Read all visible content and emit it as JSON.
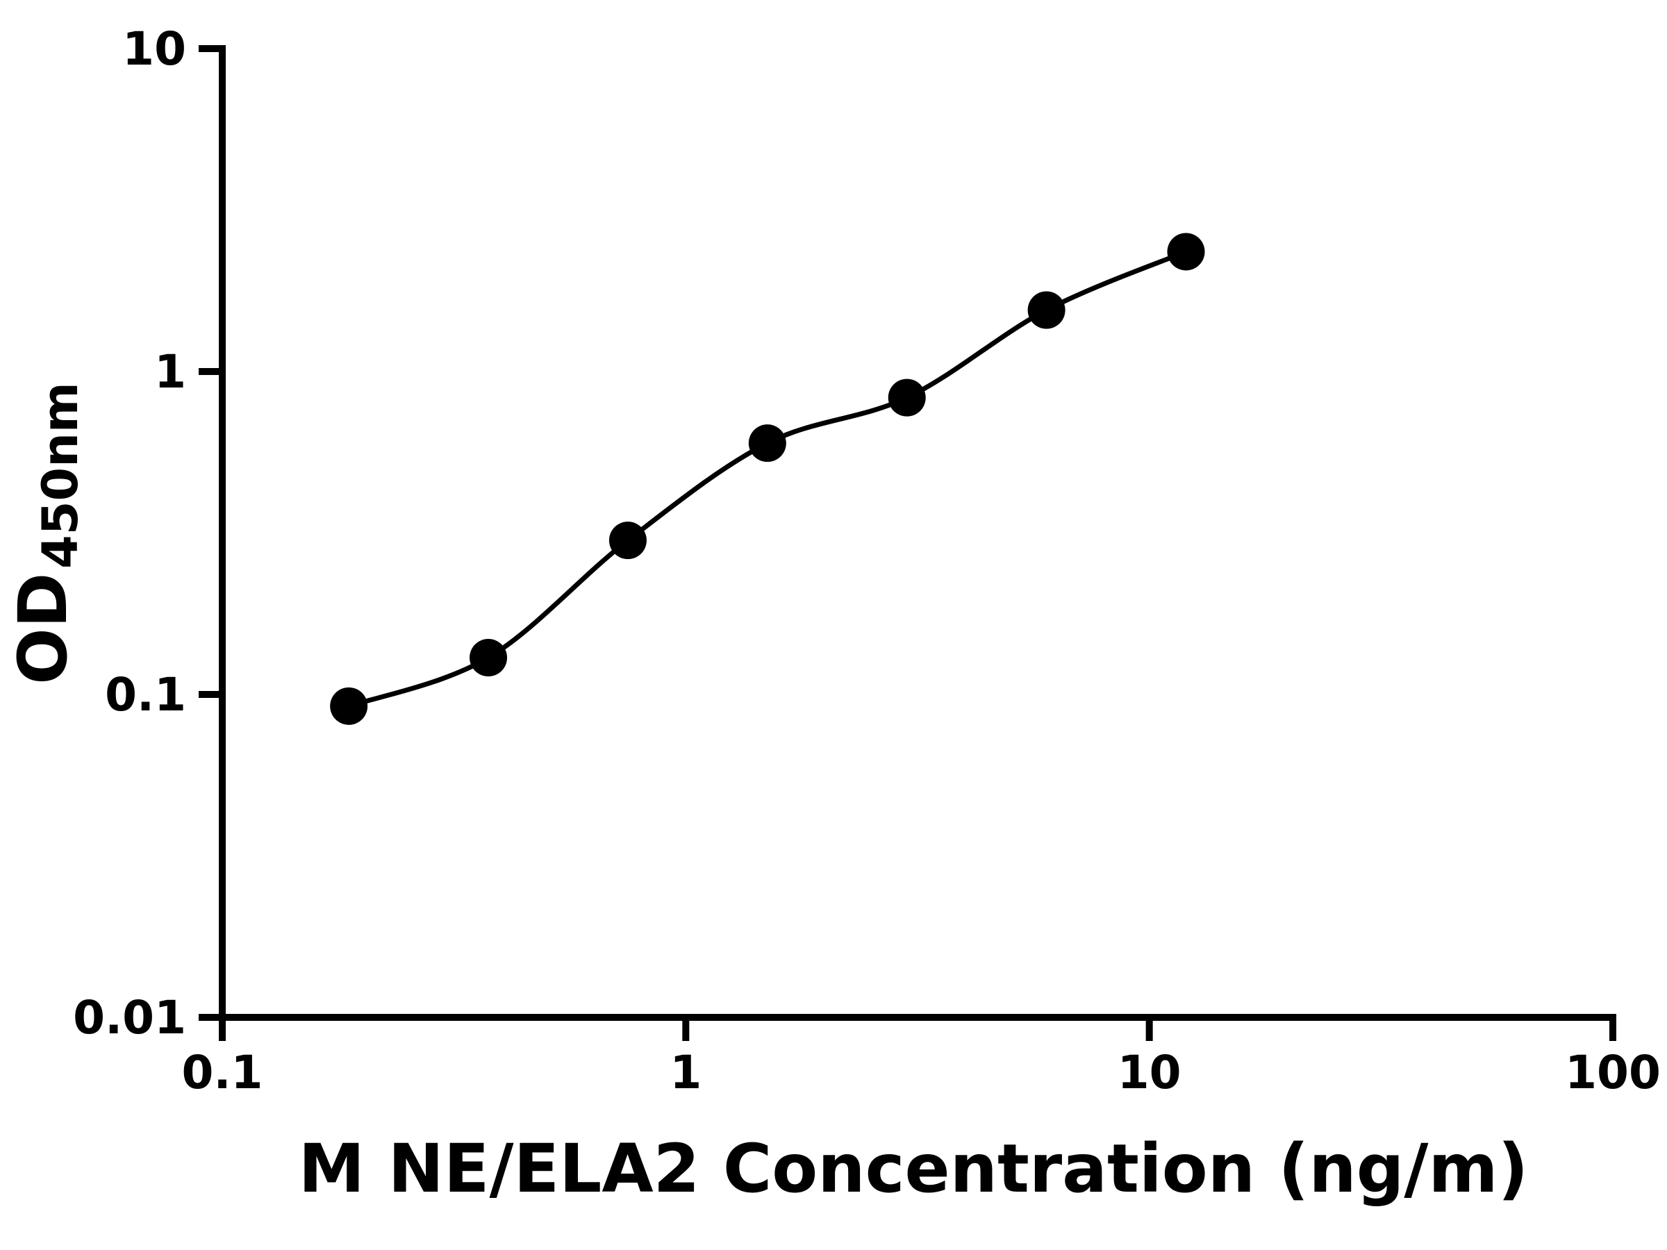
{
  "chart_data": {
    "type": "scatter",
    "title": "",
    "xlabel": "M NE/ELA2 Concentration (ng/m)",
    "ylabel_main": "OD",
    "ylabel_sub": "450nm",
    "x_scale": "log",
    "y_scale": "log",
    "xlim": [
      0.1,
      100
    ],
    "ylim": [
      0.01,
      10
    ],
    "grid": false,
    "legend": "none",
    "axis_color": "#000000",
    "marker_color": "#000000",
    "line_color": "#000000",
    "x_ticks": [
      {
        "value": 0.1,
        "label": "0.1"
      },
      {
        "value": 1,
        "label": "1"
      },
      {
        "value": 10,
        "label": "10"
      },
      {
        "value": 100,
        "label": "100"
      }
    ],
    "y_ticks": [
      {
        "value": 0.01,
        "label": "0.01"
      },
      {
        "value": 0.1,
        "label": "0.1"
      },
      {
        "value": 1,
        "label": "1"
      },
      {
        "value": 10,
        "label": "10"
      }
    ],
    "points": [
      {
        "x": 0.1875,
        "y": 0.092
      },
      {
        "x": 0.375,
        "y": 0.13
      },
      {
        "x": 0.75,
        "y": 0.3
      },
      {
        "x": 1.5,
        "y": 0.6
      },
      {
        "x": 3,
        "y": 0.83
      },
      {
        "x": 6,
        "y": 1.55
      },
      {
        "x": 12,
        "y": 2.35
      }
    ],
    "curve": "smooth fit line through standard points"
  }
}
